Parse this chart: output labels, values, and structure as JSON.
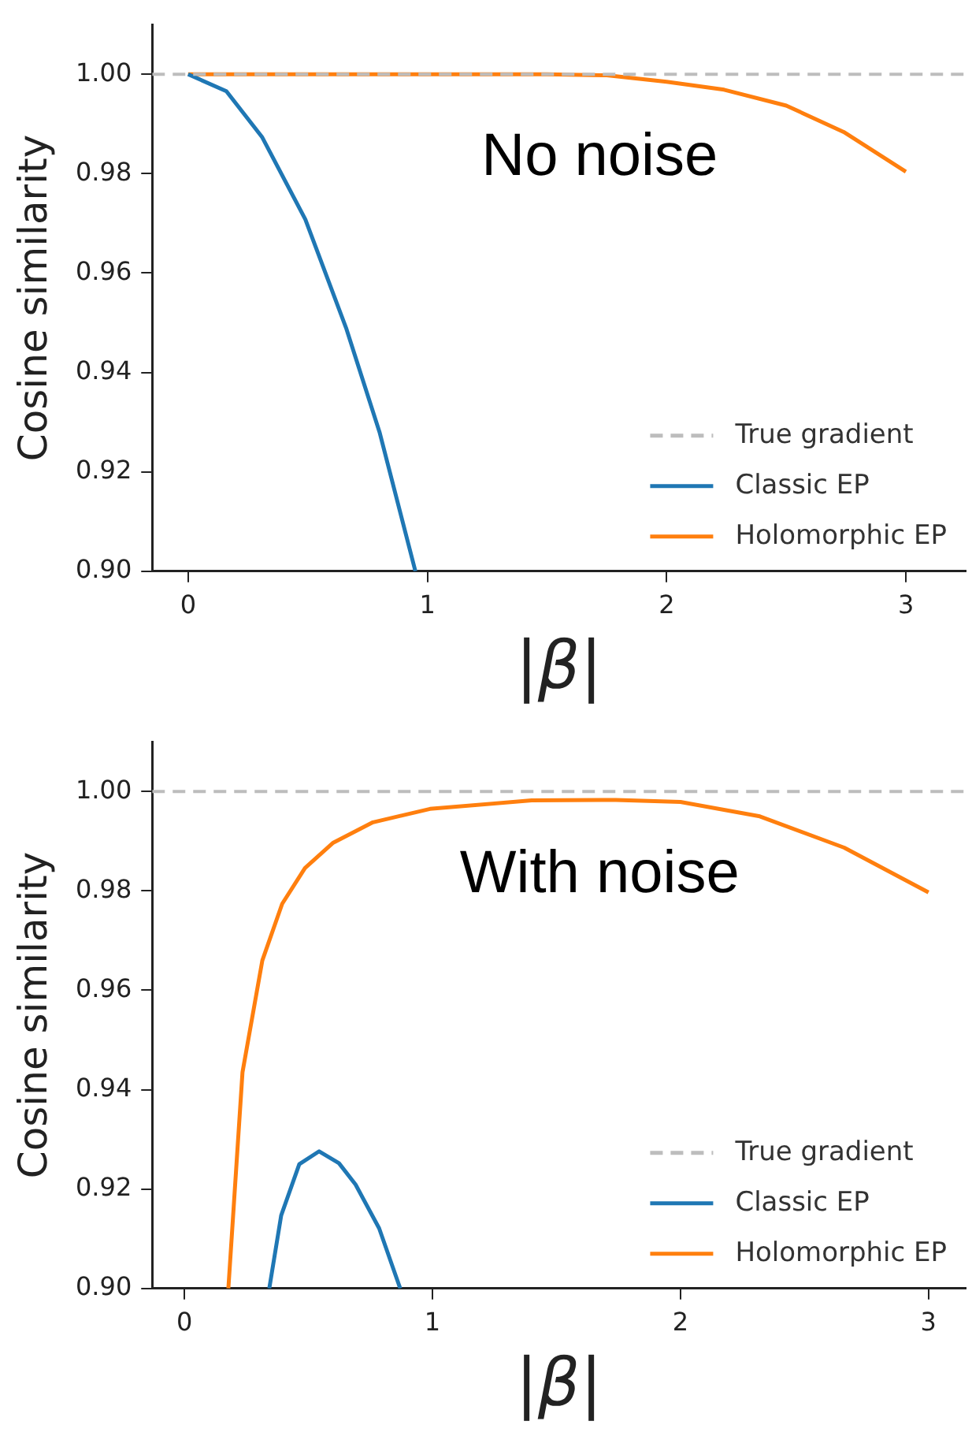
{
  "chart_data": [
    {
      "type": "line",
      "annotations": [
        "No noise"
      ],
      "xlabel": "|β|",
      "ylabel": "Cosine similarity",
      "xlim": [
        -0.15,
        3.25
      ],
      "ylim": [
        0.9,
        1.01
      ],
      "xticks": [
        0,
        1,
        2,
        3
      ],
      "yticks": [
        {
          "value": 0.9,
          "label": "0.90"
        },
        {
          "value": 0.92,
          "label": "0.92"
        },
        {
          "value": 0.94,
          "label": "0.94"
        },
        {
          "value": 0.96,
          "label": "0.96"
        },
        {
          "value": 0.98,
          "label": "0.98"
        },
        {
          "value": 1.0,
          "label": "1.00"
        }
      ],
      "grid": false,
      "legend": "bottom right",
      "marker": "none",
      "line_style": "solid",
      "ref_lines": [
        {
          "axis": "y",
          "value": 1.0,
          "label": "True gradient",
          "color": "#bdbdbd",
          "line_style": "dashed"
        }
      ],
      "series": [
        {
          "name": "Classic EP",
          "color": "#1f77b4",
          "x": [
            0,
            0.16,
            0.31,
            0.49,
            0.66,
            0.8,
            0.95
          ],
          "values": [
            1.0,
            0.9966,
            0.9873,
            0.9708,
            0.949,
            0.928,
            0.9
          ]
        },
        {
          "name": "Holomorphic EP",
          "color": "#ff7f0e",
          "x": [
            0,
            0.5,
            1.0,
            1.5,
            1.75,
            2.0,
            2.24,
            2.5,
            2.74,
            3.0
          ],
          "values": [
            1.0,
            1.0,
            1.0,
            1.0,
            0.9998,
            0.9985,
            0.9969,
            0.9937,
            0.9884,
            0.9804
          ]
        }
      ]
    },
    {
      "type": "line",
      "annotations": [
        "With noise"
      ],
      "xlabel": "|β|",
      "ylabel": "Cosine similarity",
      "xlim": [
        -0.13,
        3.15
      ],
      "ylim": [
        0.9,
        1.01
      ],
      "xticks": [
        0,
        1,
        2,
        3
      ],
      "yticks": [
        {
          "value": 0.9,
          "label": "0.90"
        },
        {
          "value": 0.92,
          "label": "0.92"
        },
        {
          "value": 0.94,
          "label": "0.94"
        },
        {
          "value": 0.96,
          "label": "0.96"
        },
        {
          "value": 0.98,
          "label": "0.98"
        },
        {
          "value": 1.0,
          "label": "1.00"
        }
      ],
      "grid": false,
      "legend": "bottom right",
      "marker": "none",
      "line_style": "solid",
      "ref_lines": [
        {
          "axis": "y",
          "value": 1.0,
          "label": "True gradient",
          "color": "#bdbdbd",
          "line_style": "dashed"
        }
      ],
      "series": [
        {
          "name": "Classic EP",
          "color": "#1f77b4",
          "x": [
            0.342,
            0.39,
            0.463,
            0.543,
            0.623,
            0.69,
            0.785,
            0.87
          ],
          "values": [
            0.9,
            0.9147,
            0.925,
            0.9276,
            0.9252,
            0.9209,
            0.9121,
            0.9
          ]
        },
        {
          "name": "Holomorphic EP",
          "color": "#ff7f0e",
          "x": [
            0.177,
            0.234,
            0.314,
            0.394,
            0.486,
            0.6,
            0.76,
            0.99,
            1.4,
            1.74,
            2.0,
            2.32,
            2.66,
            3.0
          ],
          "values": [
            0.9,
            0.9435,
            0.966,
            0.9774,
            0.9846,
            0.9897,
            0.9938,
            0.9965,
            0.9982,
            0.9983,
            0.9979,
            0.995,
            0.9887,
            0.9797
          ]
        }
      ]
    }
  ]
}
